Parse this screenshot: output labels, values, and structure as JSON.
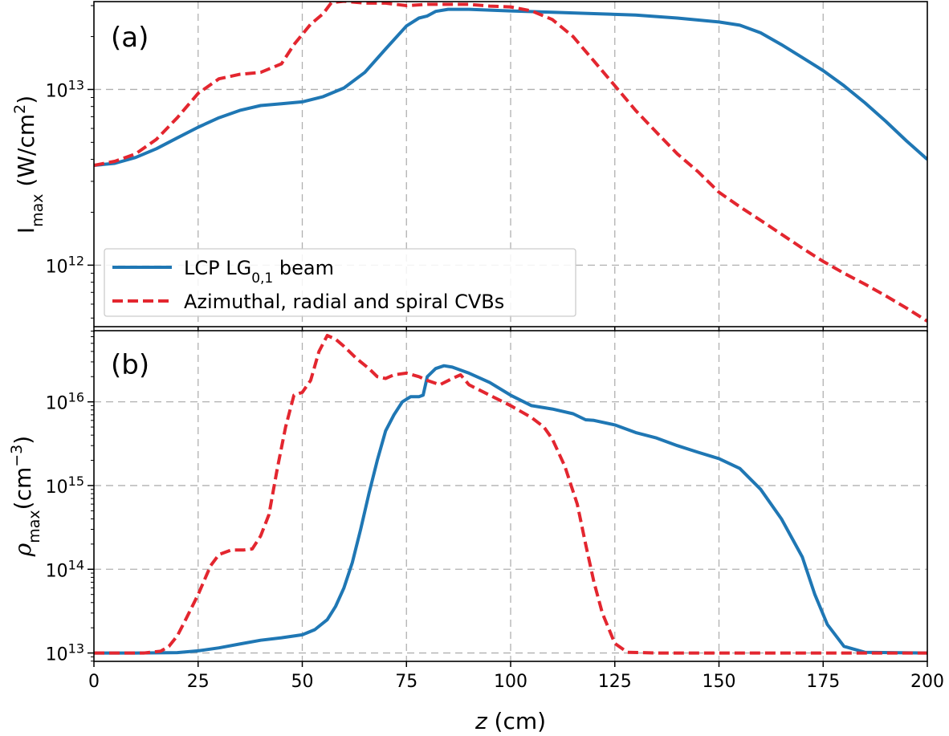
{
  "chart_data": [
    {
      "panel_label": "(a)",
      "type": "line",
      "yscale": "log",
      "xlim": [
        0,
        200
      ],
      "ylim_exp": [
        11.65,
        13.5
      ],
      "xticks": [
        0,
        25,
        50,
        75,
        100,
        125,
        150,
        175,
        200
      ],
      "yticks": [
        {
          "base": "10",
          "exp": "12",
          "value": 1000000000000.0
        },
        {
          "base": "10",
          "exp": "13",
          "value": 10000000000000.0
        }
      ],
      "ylabel": {
        "main": "I",
        "sub": "max",
        "units_pre": " (W/cm",
        "units_sup": "2",
        "units_post": ")"
      },
      "legend": {
        "entries": [
          {
            "pre": "LCP LG",
            "sub": "0,1",
            "post": " beam",
            "series": 0
          },
          {
            "pre": "Azimuthal, radial and spiral CVBs",
            "sub": "",
            "post": "",
            "series": 1
          }
        ]
      },
      "series": [
        {
          "name": "LCP LG0,1 beam",
          "color": "#1f77b4",
          "dash": "solid",
          "points": [
            [
              0,
              3700000000000.0
            ],
            [
              5,
              3800000000000.0
            ],
            [
              10,
              4100000000000.0
            ],
            [
              15,
              4600000000000.0
            ],
            [
              20,
              5300000000000.0
            ],
            [
              25,
              6100000000000.0
            ],
            [
              30,
              6900000000000.0
            ],
            [
              35,
              7600000000000.0
            ],
            [
              40,
              8100000000000.0
            ],
            [
              45,
              8300000000000.0
            ],
            [
              50,
              8500000000000.0
            ],
            [
              55,
              9100000000000.0
            ],
            [
              60,
              10200000000000.0
            ],
            [
              65,
              12500000000000.0
            ],
            [
              70,
              17000000000000.0
            ],
            [
              75,
              23000000000000.0
            ],
            [
              78,
              25500000000000.0
            ],
            [
              80,
              26200000000000.0
            ],
            [
              82,
              27800000000000.0
            ],
            [
              85,
              28600000000000.0
            ],
            [
              90,
              28600000000000.0
            ],
            [
              95,
              28300000000000.0
            ],
            [
              100,
              28000000000000.0
            ],
            [
              110,
              27500000000000.0
            ],
            [
              120,
              27000000000000.0
            ],
            [
              130,
              26500000000000.0
            ],
            [
              140,
              25500000000000.0
            ],
            [
              150,
              24200000000000.0
            ],
            [
              155,
              23200000000000.0
            ],
            [
              160,
              21000000000000.0
            ],
            [
              165,
              18000000000000.0
            ],
            [
              170,
              15200000000000.0
            ],
            [
              175,
              12800000000000.0
            ],
            [
              180,
              10500000000000.0
            ],
            [
              185,
              8400000000000.0
            ],
            [
              190,
              6600000000000.0
            ],
            [
              195,
              5100000000000.0
            ],
            [
              200,
              4000000000000.0
            ]
          ]
        },
        {
          "name": "Azimuthal, radial and spiral CVBs",
          "color": "#e3262f",
          "dash": "dashed",
          "points": [
            [
              0,
              3700000000000.0
            ],
            [
              5,
              3900000000000.0
            ],
            [
              10,
              4300000000000.0
            ],
            [
              15,
              5200000000000.0
            ],
            [
              20,
              6900000000000.0
            ],
            [
              25,
              9500000000000.0
            ],
            [
              30,
              11500000000000.0
            ],
            [
              35,
              12200000000000.0
            ],
            [
              40,
              12500000000000.0
            ],
            [
              45,
              14000000000000.0
            ],
            [
              48,
              18000000000000.0
            ],
            [
              52,
              23500000000000.0
            ],
            [
              55,
              27000000000000.0
            ],
            [
              57,
              31200000000000.0
            ],
            [
              60,
              31800000000000.0
            ],
            [
              65,
              31000000000000.0
            ],
            [
              70,
              31000000000000.0
            ],
            [
              75,
              30000000000000.0
            ],
            [
              80,
              30500000000000.0
            ],
            [
              85,
              30500000000000.0
            ],
            [
              90,
              30500000000000.0
            ],
            [
              95,
              29800000000000.0
            ],
            [
              100,
              29500000000000.0
            ],
            [
              105,
              28000000000000.0
            ],
            [
              110,
              25000000000000.0
            ],
            [
              115,
              20000000000000.0
            ],
            [
              120,
              14500000000000.0
            ],
            [
              125,
              10500000000000.0
            ],
            [
              130,
              7600000000000.0
            ],
            [
              135,
              5700000000000.0
            ],
            [
              140,
              4300000000000.0
            ],
            [
              145,
              3400000000000.0
            ],
            [
              150,
              2600000000000.0
            ],
            [
              155,
              2150000000000.0
            ],
            [
              160,
              1800000000000.0
            ],
            [
              165,
              1500000000000.0
            ],
            [
              170,
              1250000000000.0
            ],
            [
              175,
              1050000000000.0
            ],
            [
              180,
              900000000000.0
            ],
            [
              185,
              780000000000.0
            ],
            [
              190,
              670000000000.0
            ],
            [
              195,
              570000000000.0
            ],
            [
              200,
              480000000000.0
            ]
          ]
        }
      ]
    },
    {
      "panel_label": "(b)",
      "type": "line",
      "yscale": "log",
      "xlim": [
        0,
        200
      ],
      "ylim_exp": [
        12.9,
        16.85
      ],
      "xticks": [
        0,
        25,
        50,
        75,
        100,
        125,
        150,
        175,
        200
      ],
      "xlabel": {
        "var": "z",
        "units": " (cm)"
      },
      "yticks": [
        {
          "base": "10",
          "exp": "13",
          "value": 10000000000000.0
        },
        {
          "base": "10",
          "exp": "14",
          "value": 100000000000000.0
        },
        {
          "base": "10",
          "exp": "15",
          "value": 1000000000000000.0
        },
        {
          "base": "10",
          "exp": "16",
          "value": 1e+16
        }
      ],
      "ylabel": {
        "main": "ρ",
        "sub": "max",
        "units_pre": "(cm",
        "units_sup": "−3",
        "units_post": ")"
      },
      "series": [
        {
          "name": "LCP LG0,1 beam",
          "color": "#1f77b4",
          "dash": "solid",
          "points": [
            [
              0,
              10000000000000.0
            ],
            [
              10,
              10000000000000.0
            ],
            [
              20,
              10100000000000.0
            ],
            [
              25,
              10600000000000.0
            ],
            [
              30,
              11500000000000.0
            ],
            [
              35,
              12800000000000.0
            ],
            [
              40,
              14200000000000.0
            ],
            [
              45,
              15200000000000.0
            ],
            [
              50,
              16500000000000.0
            ],
            [
              53,
              19000000000000.0
            ],
            [
              56,
              25000000000000.0
            ],
            [
              58,
              36000000000000.0
            ],
            [
              60,
              60000000000000.0
            ],
            [
              62,
              120000000000000.0
            ],
            [
              64,
              300000000000000.0
            ],
            [
              66,
              800000000000000.0
            ],
            [
              68,
              2000000000000000.0
            ],
            [
              70,
              4500000000000000.0
            ],
            [
              72,
              7000000000000000.0
            ],
            [
              74,
              1e+16
            ],
            [
              76,
              1.15e+16
            ],
            [
              78,
              1.15e+16
            ],
            [
              79,
              1.2e+16
            ],
            [
              80,
              2e+16
            ],
            [
              82,
              2.5e+16
            ],
            [
              84,
              2.7e+16
            ],
            [
              86,
              2.6e+16
            ],
            [
              90,
              2.2e+16
            ],
            [
              95,
              1.7e+16
            ],
            [
              100,
              1.2e+16
            ],
            [
              105,
              9000000000000000.0
            ],
            [
              110,
              8200000000000000.0
            ],
            [
              115,
              7200000000000000.0
            ],
            [
              118,
              6100000000000000.0
            ],
            [
              120,
              6000000000000000.0
            ],
            [
              125,
              5300000000000000.0
            ],
            [
              130,
              4300000000000000.0
            ],
            [
              135,
              3700000000000000.0
            ],
            [
              140,
              3000000000000000.0
            ],
            [
              145,
              2500000000000000.0
            ],
            [
              150,
              2100000000000000.0
            ],
            [
              155,
              1600000000000000.0
            ],
            [
              160,
              900000000000000.0
            ],
            [
              165,
              400000000000000.0
            ],
            [
              170,
              140000000000000.0
            ],
            [
              173,
              50000000000000.0
            ],
            [
              176,
              22000000000000.0
            ],
            [
              180,
              12000000000000.0
            ],
            [
              185,
              10200000000000.0
            ],
            [
              200,
              10000000000000.0
            ]
          ]
        },
        {
          "name": "Azimuthal, radial and spiral CVBs",
          "color": "#e3262f",
          "dash": "dashed",
          "points": [
            [
              0,
              10000000000000.0
            ],
            [
              12,
              10000000000000.0
            ],
            [
              16,
              10500000000000.0
            ],
            [
              18,
              12000000000000.0
            ],
            [
              20,
              16000000000000.0
            ],
            [
              22,
              25000000000000.0
            ],
            [
              25,
              50000000000000.0
            ],
            [
              28,
              110000000000000.0
            ],
            [
              30,
              150000000000000.0
            ],
            [
              33,
              170000000000000.0
            ],
            [
              36,
              170000000000000.0
            ],
            [
              38,
              175000000000000.0
            ],
            [
              40,
              250000000000000.0
            ],
            [
              42,
              450000000000000.0
            ],
            [
              44,
              1600000000000000.0
            ],
            [
              46,
              5000000000000000.0
            ],
            [
              48,
              1.2e+16
            ],
            [
              50,
              1.3e+16
            ],
            [
              52,
              1.8e+16
            ],
            [
              54,
              4e+16
            ],
            [
              56,
              6.2e+16
            ],
            [
              58,
              5.6e+16
            ],
            [
              60,
              4.6e+16
            ],
            [
              63,
              3.3e+16
            ],
            [
              66,
              2.5e+16
            ],
            [
              68,
              2e+16
            ],
            [
              70,
              1.9e+16
            ],
            [
              72,
              2.1e+16
            ],
            [
              75,
              2.2e+16
            ],
            [
              78,
              2e+16
            ],
            [
              80,
              1.8e+16
            ],
            [
              83,
              1.6e+16
            ],
            [
              86,
              1.9e+16
            ],
            [
              88,
              2.1e+16
            ],
            [
              90,
              1.6e+16
            ],
            [
              95,
              1.2e+16
            ],
            [
              100,
              9000000000000000.0
            ],
            [
              105,
              6500000000000000.0
            ],
            [
              108,
              5000000000000000.0
            ],
            [
              110,
              3600000000000000.0
            ],
            [
              113,
              1700000000000000.0
            ],
            [
              116,
              600000000000000.0
            ],
            [
              118,
              200000000000000.0
            ],
            [
              120,
              70000000000000.0
            ],
            [
              122,
              30000000000000.0
            ],
            [
              125,
              13000000000000.0
            ],
            [
              128,
              10200000000000.0
            ],
            [
              135,
              10000000000000.0
            ],
            [
              200,
              10000000000000.0
            ]
          ]
        }
      ]
    }
  ]
}
